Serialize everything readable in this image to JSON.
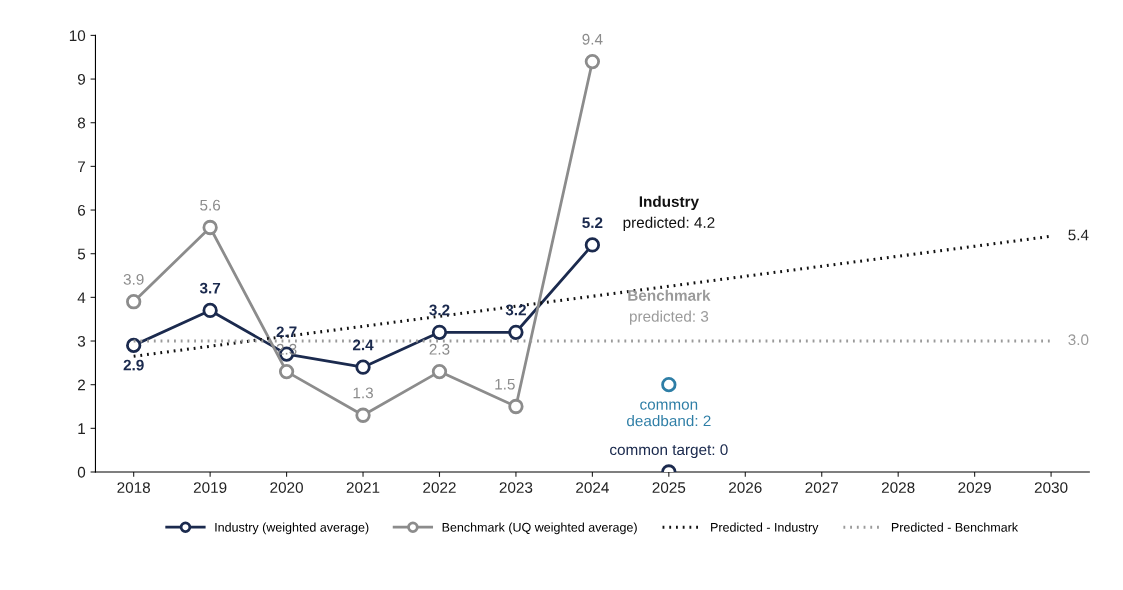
{
  "chart_data": {
    "type": "line",
    "xlim": [
      2017.5,
      2030.5
    ],
    "xticks": [
      2018,
      2019,
      2020,
      2021,
      2022,
      2023,
      2024,
      2025,
      2026,
      2027,
      2028,
      2029,
      2030
    ],
    "ylim": [
      0,
      10
    ],
    "yticks": [
      0,
      1,
      2,
      3,
      4,
      5,
      6,
      7,
      8,
      9,
      10
    ],
    "grid": false,
    "legend": "bottom",
    "marker": "circle",
    "series": [
      {
        "name": "Industry (weighted average)",
        "color": "#1b2a4e",
        "x": [
          2018,
          2019,
          2020,
          2021,
          2022,
          2023,
          2024
        ],
        "values": [
          2.9,
          3.7,
          2.7,
          2.4,
          3.2,
          3.2,
          5.2
        ],
        "value_labels": [
          "2.9",
          "3.7",
          "2.7",
          "2.4",
          "3.2",
          "3.2",
          "5.2"
        ]
      },
      {
        "name": "Benchmark (UQ weighted average)",
        "color": "#8c8c8c",
        "x": [
          2018,
          2019,
          2020,
          2021,
          2022,
          2023,
          2024
        ],
        "values": [
          3.9,
          5.6,
          2.3,
          1.3,
          2.3,
          1.5,
          9.4
        ],
        "value_labels": [
          "3.9",
          "5.6",
          "2.3",
          "1.3",
          "2.3",
          "1.5",
          "9.4"
        ]
      },
      {
        "name": "Predicted - Industry",
        "color": "#111111",
        "marker": "none",
        "line_style": "dotted",
        "x": [
          2018,
          2030
        ],
        "values": [
          2.65,
          5.4
        ],
        "value_labels": [
          null,
          "5.4"
        ]
      },
      {
        "name": "Predicted - Benchmark",
        "color": "#9a9a9a",
        "marker": "none",
        "line_style": "dotted",
        "x": [
          2018,
          2030
        ],
        "values": [
          3.0,
          3.0
        ],
        "value_labels": [
          null,
          "3.0"
        ]
      },
      {
        "type": "scatter",
        "color": "#2e7ea6",
        "x": [
          2025
        ],
        "values": [
          2
        ],
        "value_labels": [
          "common\ndeadband: 2"
        ]
      },
      {
        "type": "scatter",
        "color": "#1b2a4e",
        "x": [
          2025
        ],
        "values": [
          0
        ],
        "value_labels": [
          "common target: 0"
        ]
      }
    ],
    "annotations": [
      "Industry\npredicted: 4.2",
      "Benchmark\npredicted: 3"
    ]
  }
}
